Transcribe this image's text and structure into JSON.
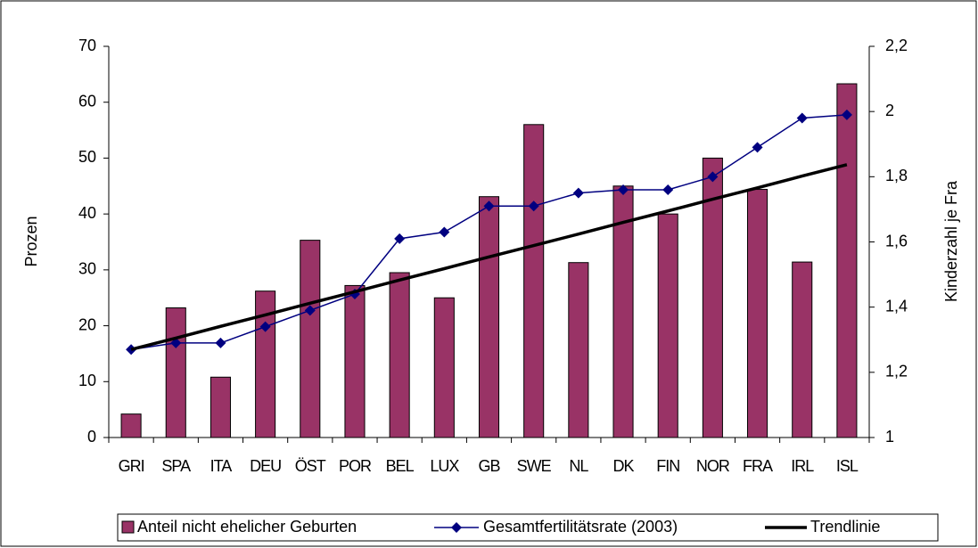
{
  "chart_data": {
    "type": "bar",
    "categories": [
      "GRI",
      "SPA",
      "ITA",
      "DEU",
      "ÖST",
      "POR",
      "BEL",
      "LUX",
      "GB",
      "SWE",
      "NL",
      "DK",
      "FIN",
      "NOR",
      "FRA",
      "IRL",
      "ISL"
    ],
    "series": [
      {
        "name": "Anteil nicht ehelicher Geburten",
        "type": "bar",
        "color": "#993366",
        "values": [
          4.2,
          23.2,
          10.8,
          26.2,
          35.3,
          27.2,
          29.5,
          25,
          43.1,
          56,
          31.3,
          45,
          40,
          50,
          44.4,
          31.4,
          63.3
        ]
      },
      {
        "name": "Gesamtfertilitätsrate (2003)",
        "type": "line",
        "axis": "y2",
        "color": "#000080",
        "values": [
          1.27,
          1.29,
          1.29,
          1.34,
          1.39,
          1.44,
          1.61,
          1.63,
          1.71,
          1.71,
          1.75,
          1.76,
          1.76,
          1.8,
          1.89,
          1.98,
          1.99
        ]
      },
      {
        "name": "Trendlinie",
        "type": "trend",
        "axis": "y2",
        "color": "#000000",
        "values": [
          1.27,
          1.305,
          1.341,
          1.376,
          1.412,
          1.447,
          1.483,
          1.518,
          1.554,
          1.589,
          1.624,
          1.66,
          1.695,
          1.731,
          1.766,
          1.802,
          1.837
        ]
      }
    ],
    "ylabel": "Prozen",
    "y2label": "Kinderzahl je Fra",
    "ylim": [
      0,
      70
    ],
    "yticks": [
      0,
      10,
      20,
      30,
      40,
      50,
      60,
      70
    ],
    "y2lim": [
      1,
      2.2
    ],
    "y2ticks": [
      1,
      {
        "value": 1.2,
        "label": "1,2"
      },
      {
        "value": 1.4,
        "label": "1,4"
      },
      {
        "value": 1.6,
        "label": "1,6"
      },
      {
        "value": 1.8,
        "label": "1,8"
      },
      2,
      {
        "value": 2.2,
        "label": "2,2"
      }
    ],
    "legend": "bottom"
  }
}
